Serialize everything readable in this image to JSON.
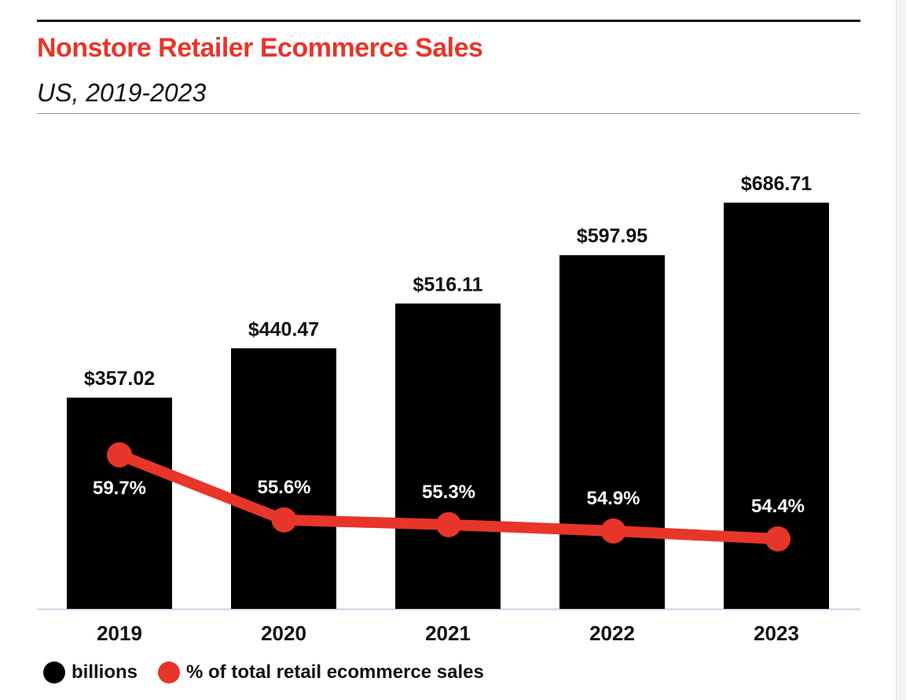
{
  "chart_data": {
    "type": "bar",
    "title": "Nonstore Retailer Ecommerce Sales",
    "subtitle": "US, 2019-2023",
    "categories": [
      "2019",
      "2020",
      "2021",
      "2022",
      "2023"
    ],
    "series": [
      {
        "name": "billions",
        "type": "bar",
        "color": "#000000",
        "values": [
          357.02,
          440.47,
          516.11,
          597.95,
          686.71
        ],
        "labels": [
          "$357.02",
          "$440.47",
          "$516.11",
          "$597.95",
          "$686.71"
        ]
      },
      {
        "name": "% of total retail ecommerce sales",
        "type": "line",
        "color": "#e8352a",
        "values": [
          59.7,
          55.6,
          55.3,
          54.9,
          54.4
        ],
        "labels": [
          "59.7%",
          "55.6%",
          "55.3%",
          "54.9%",
          "54.4%"
        ]
      }
    ],
    "grid": false,
    "legend_position": "bottom-left"
  }
}
